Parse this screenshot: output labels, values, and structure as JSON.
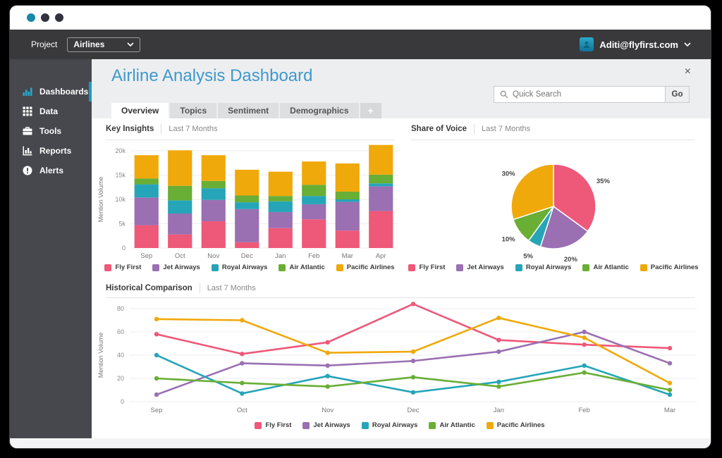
{
  "window": {
    "dot_colors": [
      "#1489A8",
      "#32323E",
      "#32323E"
    ]
  },
  "app_bar": {
    "project_label": "Project",
    "project_value": "Airlines",
    "user_email": "Aditi@flyfirst.com"
  },
  "sidebar": {
    "items": [
      {
        "label": "Dashboards",
        "icon": "dashboards-icon",
        "active": true
      },
      {
        "label": "Data",
        "icon": "data-grid-icon",
        "active": false
      },
      {
        "label": "Tools",
        "icon": "tools-icon",
        "active": false
      },
      {
        "label": "Reports",
        "icon": "reports-icon",
        "active": false
      },
      {
        "label": "Alerts",
        "icon": "alerts-icon",
        "active": false
      }
    ]
  },
  "header": {
    "title": "Airline Analysis Dashboard",
    "search_placeholder": "Quick Search",
    "go_label": "Go",
    "close_label": "×"
  },
  "tabs": [
    {
      "label": "Overview",
      "active": true
    },
    {
      "label": "Topics",
      "active": false
    },
    {
      "label": "Sentiment",
      "active": false
    },
    {
      "label": "Demographics",
      "active": false
    },
    {
      "label": "+",
      "active": false
    }
  ],
  "sections": {
    "key_insights": {
      "title": "Key Insights",
      "subtitle": "Last 7 Months"
    },
    "share_of_voice": {
      "title": "Share of Voice",
      "subtitle": "Last 7 Months"
    },
    "historical": {
      "title": "Historical Comparison",
      "subtitle": "Last 7 Months"
    }
  },
  "colors": {
    "accent_blue": "#1B9AC4",
    "title_blue": "#3F99CB",
    "appbar_bg": "#39393C",
    "sidebar_bg": "#47474E",
    "page_bg": "#EDEEF0",
    "fly_first": "#EE5879",
    "jet_airways": "#9A70B2",
    "royal_airways": "#26A5B8",
    "air_atlantic": "#69AE35",
    "pacific_airlines": "#F0A90A"
  },
  "chart_data": [
    {
      "id": "key-insights-bar",
      "type": "bar",
      "stacked": true,
      "title": "Key Insights",
      "ylabel": "Mention Volume",
      "categories": [
        "Sep",
        "Oct",
        "Nov",
        "Dec",
        "Jan",
        "Feb",
        "Mar",
        "Apr"
      ],
      "ylim": [
        0,
        20000
      ],
      "yticks": [
        {
          "v": 0,
          "label": "0"
        },
        {
          "v": 5000,
          "label": "5k"
        },
        {
          "v": 10000,
          "label": "10k"
        },
        {
          "v": 15000,
          "label": "15k"
        },
        {
          "v": 20000,
          "label": "20k"
        }
      ],
      "series": [
        {
          "name": "Fly First",
          "color": "#EE5879",
          "values": [
            4700,
            2800,
            5500,
            1200,
            4100,
            5900,
            3600,
            7600
          ]
        },
        {
          "name": "Jet Airways",
          "color": "#9A70B2",
          "values": [
            5700,
            4300,
            4400,
            6800,
            3300,
            3100,
            5900,
            5100
          ]
        },
        {
          "name": "Royal Airways",
          "color": "#26A5B8",
          "values": [
            2700,
            2700,
            2400,
            1400,
            2200,
            1700,
            500,
            600
          ]
        },
        {
          "name": "Air Atlantic",
          "color": "#69AE35",
          "values": [
            1200,
            3000,
            1500,
            1400,
            1100,
            2300,
            1600,
            1800
          ]
        },
        {
          "name": "Pacific Airlines",
          "color": "#F0A90A",
          "values": [
            4800,
            7300,
            5300,
            5300,
            5000,
            4800,
            5800,
            6100
          ]
        }
      ]
    },
    {
      "id": "share-of-voice-pie",
      "type": "pie",
      "title": "Share of Voice",
      "labels": [
        "Fly First",
        "Jet Airways",
        "Royal Airways",
        "Air Atlantic",
        "Pacific Airlines"
      ],
      "values": [
        35,
        20,
        5,
        10,
        30
      ],
      "pct_labels": [
        "35%",
        "20%",
        "5%",
        "10%",
        "30%"
      ],
      "colors": [
        "#EE5879",
        "#9A70B2",
        "#26A5B8",
        "#69AE35",
        "#F0A90A"
      ]
    },
    {
      "id": "historical-line",
      "type": "line",
      "title": "Historical Comparison",
      "ylabel": "Mention Volume",
      "x": [
        "Sep",
        "Oct",
        "Nov",
        "Dec",
        "Jan",
        "Feb",
        "Mar"
      ],
      "ylim": [
        0,
        80
      ],
      "yticks": [
        0,
        20,
        40,
        60,
        80
      ],
      "series": [
        {
          "name": "Fly First",
          "color": "#EE5879",
          "values": [
            58,
            41,
            51,
            84,
            53,
            49,
            46
          ]
        },
        {
          "name": "Jet Airways",
          "color": "#9A70B2",
          "values": [
            6,
            33,
            31,
            35,
            43,
            60,
            33
          ]
        },
        {
          "name": "Royal Airways",
          "color": "#26A5B8",
          "values": [
            40,
            7,
            22,
            8,
            17,
            31,
            6
          ]
        },
        {
          "name": "Air Atlantic",
          "color": "#69AE35",
          "values": [
            20,
            16,
            13,
            21,
            13,
            25,
            10
          ]
        },
        {
          "name": "Pacific Airlines",
          "color": "#F0A90A",
          "values": [
            71,
            70,
            42,
            43,
            72,
            55,
            16
          ]
        }
      ]
    }
  ]
}
